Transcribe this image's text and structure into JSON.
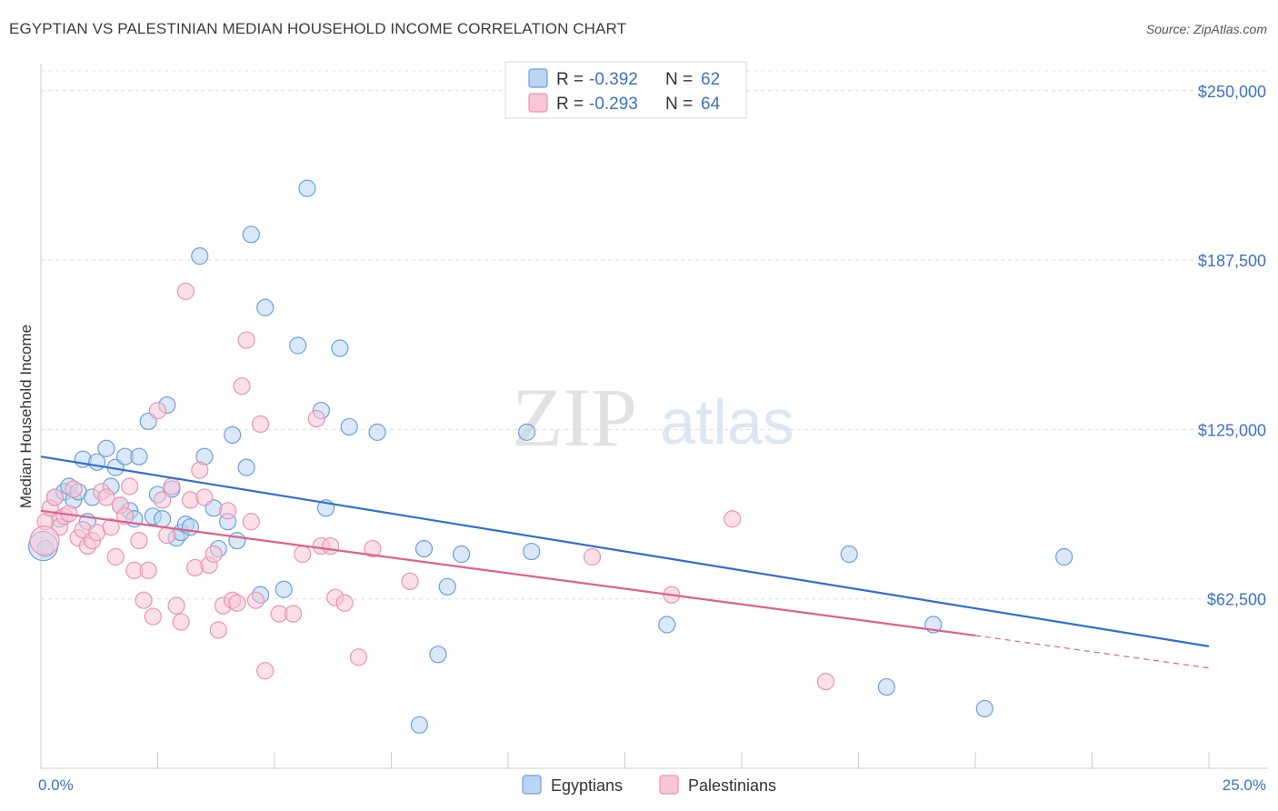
{
  "header": {
    "title": "EGYPTIAN VS PALESTINIAN MEDIAN HOUSEHOLD INCOME CORRELATION CHART",
    "source": "Source: ZipAtlas.com"
  },
  "watermark": {
    "zip": "ZIP",
    "atlas": "atlas"
  },
  "legend": {
    "r_label": "R =",
    "n_label": "N =",
    "rows": [
      {
        "r": "-0.392",
        "n": "62",
        "color": "#a9c8f0"
      },
      {
        "r": "-0.293",
        "n": "64",
        "color": "#f5b8cb"
      }
    ]
  },
  "bottom_legend": [
    "Egyptians",
    "Palestinians"
  ],
  "chart_data": {
    "type": "scatter",
    "title": "EGYPTIAN VS PALESTINIAN MEDIAN HOUSEHOLD INCOME CORRELATION CHART",
    "ylabel": "Median Household Income",
    "xlabel": "",
    "xlim": [
      0,
      25
    ],
    "ylim": [
      0,
      260000
    ],
    "x_tick_labels": [
      "0.0%",
      "25.0%"
    ],
    "y_ticks": [
      62500,
      125000,
      187500,
      250000
    ],
    "y_tick_labels": [
      "$62,500",
      "$125,000",
      "$187,500",
      "$250,000"
    ],
    "grid": "horizontal-dashed",
    "legend_position": "top-center",
    "series": [
      {
        "name": "Egyptians",
        "color": "#6a9fe0",
        "fill": "#bcd5f3",
        "line_color": "#2f6fd0",
        "trend": {
          "x": [
            0,
            25
          ],
          "y": [
            115000,
            45000
          ]
        },
        "points": [
          [
            0.1,
            81000
          ],
          [
            0.3,
            100000
          ],
          [
            0.4,
            92000
          ],
          [
            0.5,
            102000
          ],
          [
            0.6,
            104000
          ],
          [
            0.7,
            99000
          ],
          [
            0.8,
            102000
          ],
          [
            0.9,
            114000
          ],
          [
            1.0,
            91000
          ],
          [
            1.1,
            100000
          ],
          [
            1.2,
            113000
          ],
          [
            1.4,
            118000
          ],
          [
            1.5,
            104000
          ],
          [
            1.6,
            111000
          ],
          [
            1.7,
            97000
          ],
          [
            1.8,
            115000
          ],
          [
            1.9,
            95000
          ],
          [
            2.0,
            92000
          ],
          [
            2.1,
            115000
          ],
          [
            2.3,
            128000
          ],
          [
            2.4,
            93000
          ],
          [
            2.5,
            101000
          ],
          [
            2.6,
            92000
          ],
          [
            2.7,
            134000
          ],
          [
            2.8,
            103000
          ],
          [
            2.9,
            85000
          ],
          [
            3.0,
            87000
          ],
          [
            3.1,
            90000
          ],
          [
            3.2,
            89000
          ],
          [
            3.4,
            189000
          ],
          [
            3.5,
            115000
          ],
          [
            3.7,
            96000
          ],
          [
            3.8,
            81000
          ],
          [
            4.0,
            91000
          ],
          [
            4.1,
            123000
          ],
          [
            4.2,
            84000
          ],
          [
            4.4,
            111000
          ],
          [
            4.5,
            197000
          ],
          [
            4.7,
            64000
          ],
          [
            4.8,
            170000
          ],
          [
            5.2,
            66000
          ],
          [
            5.5,
            156000
          ],
          [
            5.7,
            214000
          ],
          [
            6.0,
            132000
          ],
          [
            6.1,
            96000
          ],
          [
            6.4,
            155000
          ],
          [
            6.6,
            126000
          ],
          [
            7.2,
            124000
          ],
          [
            8.1,
            16000
          ],
          [
            8.2,
            81000
          ],
          [
            8.5,
            42000
          ],
          [
            8.7,
            67000
          ],
          [
            9.0,
            79000
          ],
          [
            10.4,
            124000
          ],
          [
            10.5,
            80000
          ],
          [
            13.4,
            53000
          ],
          [
            17.3,
            79000
          ],
          [
            18.1,
            30000
          ],
          [
            19.1,
            53000
          ],
          [
            20.2,
            22000
          ],
          [
            21.9,
            78000
          ],
          [
            0.05,
            82000
          ]
        ]
      },
      {
        "name": "Palestinians",
        "color": "#ec93ae",
        "fill": "#f8c6d5",
        "line_color": "#e0608a",
        "trend": {
          "x": [
            0,
            20
          ],
          "y": [
            95000,
            49000
          ]
        },
        "trend_dashed": {
          "x": [
            20,
            25
          ],
          "y": [
            49000,
            37000
          ]
        },
        "points": [
          [
            0.1,
            91000
          ],
          [
            0.2,
            96000
          ],
          [
            0.3,
            100000
          ],
          [
            0.4,
            89000
          ],
          [
            0.5,
            93000
          ],
          [
            0.6,
            94000
          ],
          [
            0.7,
            103000
          ],
          [
            0.8,
            85000
          ],
          [
            0.9,
            88000
          ],
          [
            1.0,
            82000
          ],
          [
            1.1,
            84000
          ],
          [
            1.2,
            87000
          ],
          [
            1.3,
            102000
          ],
          [
            1.4,
            100000
          ],
          [
            1.5,
            89000
          ],
          [
            1.6,
            78000
          ],
          [
            1.7,
            97000
          ],
          [
            1.8,
            93000
          ],
          [
            1.9,
            104000
          ],
          [
            2.0,
            73000
          ],
          [
            2.1,
            84000
          ],
          [
            2.2,
            62000
          ],
          [
            2.3,
            73000
          ],
          [
            2.4,
            56000
          ],
          [
            2.5,
            132000
          ],
          [
            2.6,
            99000
          ],
          [
            2.7,
            86000
          ],
          [
            2.8,
            104000
          ],
          [
            2.9,
            60000
          ],
          [
            3.0,
            54000
          ],
          [
            3.1,
            176000
          ],
          [
            3.2,
            99000
          ],
          [
            3.3,
            74000
          ],
          [
            3.4,
            110000
          ],
          [
            3.5,
            100000
          ],
          [
            3.6,
            75000
          ],
          [
            3.7,
            79000
          ],
          [
            3.8,
            51000
          ],
          [
            3.9,
            60000
          ],
          [
            4.0,
            95000
          ],
          [
            4.1,
            62000
          ],
          [
            4.2,
            61000
          ],
          [
            4.3,
            141000
          ],
          [
            4.4,
            158000
          ],
          [
            4.5,
            91000
          ],
          [
            4.6,
            62000
          ],
          [
            4.7,
            127000
          ],
          [
            4.8,
            36000
          ],
          [
            5.1,
            57000
          ],
          [
            5.4,
            57000
          ],
          [
            5.6,
            79000
          ],
          [
            5.9,
            129000
          ],
          [
            6.0,
            82000
          ],
          [
            6.2,
            82000
          ],
          [
            6.3,
            63000
          ],
          [
            6.5,
            61000
          ],
          [
            6.8,
            41000
          ],
          [
            7.1,
            81000
          ],
          [
            7.9,
            69000
          ],
          [
            11.8,
            78000
          ],
          [
            13.5,
            64000
          ],
          [
            14.8,
            92000
          ],
          [
            16.8,
            32000
          ],
          [
            0.08,
            84000
          ]
        ]
      }
    ]
  }
}
